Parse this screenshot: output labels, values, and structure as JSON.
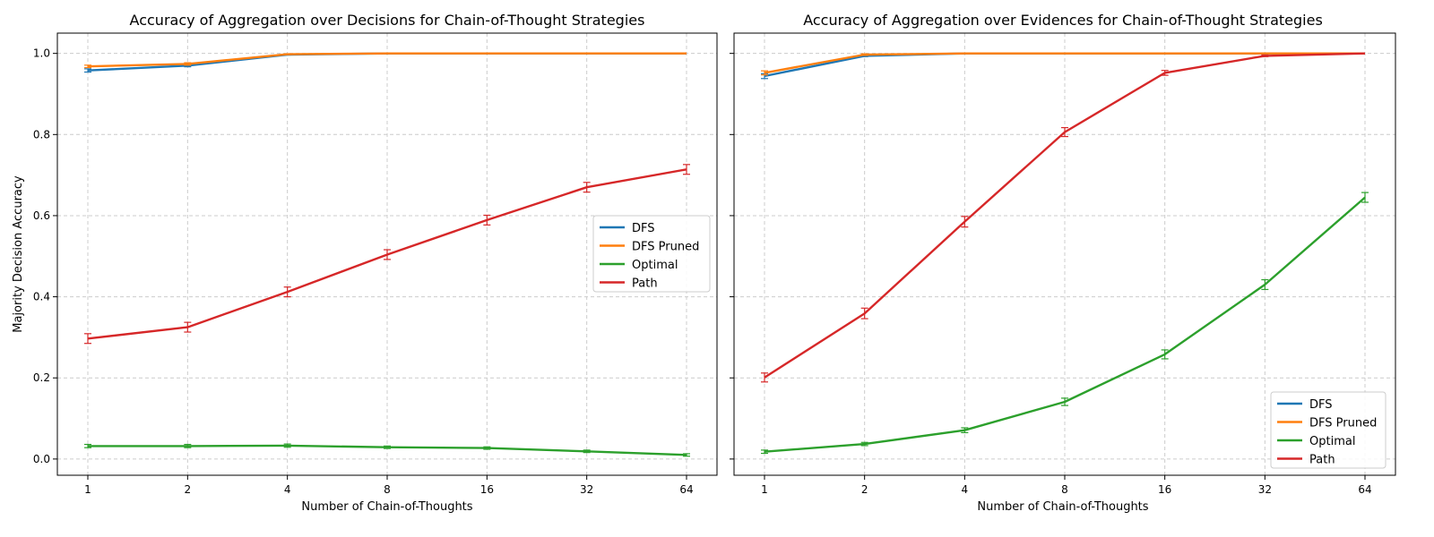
{
  "chart_data": [
    {
      "type": "line",
      "title": "Accuracy of Aggregation over Decisions for Chain-of-Thought Strategies",
      "xlabel": "Number of Chain-of-Thoughts",
      "ylabel": "Majority Decision Accuracy",
      "x": [
        1,
        2,
        4,
        8,
        16,
        32,
        64
      ],
      "x_tick_labels": [
        "1",
        "2",
        "4",
        "8",
        "16",
        "32",
        "64"
      ],
      "x_scale": "log2",
      "ylim": [
        -0.04,
        1.05
      ],
      "y_ticks": [
        0.0,
        0.2,
        0.4,
        0.6,
        0.8,
        1.0
      ],
      "y_tick_labels": [
        "0.0",
        "0.2",
        "0.4",
        "0.6",
        "0.8",
        "1.0"
      ],
      "grid": true,
      "legend_position": "center-right",
      "series": [
        {
          "name": "DFS",
          "color": "#1f77b4",
          "values": [
            0.958,
            0.97,
            0.997,
            1.0,
            1.0,
            1.0,
            1.0
          ],
          "errors": [
            0.004,
            0.003,
            0.001,
            0.0,
            0.0,
            0.0,
            0.0
          ]
        },
        {
          "name": "DFS Pruned",
          "color": "#ff7f0e",
          "values": [
            0.968,
            0.974,
            0.998,
            1.0,
            1.0,
            1.0,
            1.0
          ],
          "errors": [
            0.003,
            0.003,
            0.001,
            0.0,
            0.0,
            0.0,
            0.0
          ]
        },
        {
          "name": "Optimal",
          "color": "#2ca02c",
          "values": [
            0.032,
            0.032,
            0.033,
            0.029,
            0.027,
            0.019,
            0.01
          ],
          "errors": [
            0.004,
            0.004,
            0.004,
            0.003,
            0.003,
            0.003,
            0.003
          ]
        },
        {
          "name": "Path",
          "color": "#d62728",
          "values": [
            0.297,
            0.325,
            0.412,
            0.504,
            0.589,
            0.67,
            0.714
          ],
          "errors": [
            0.012,
            0.012,
            0.012,
            0.012,
            0.012,
            0.012,
            0.012
          ]
        }
      ]
    },
    {
      "type": "line",
      "title": "Accuracy of Aggregation over Evidences for Chain-of-Thought Strategies",
      "xlabel": "Number of Chain-of-Thoughts",
      "ylabel": "",
      "x": [
        1,
        2,
        4,
        8,
        16,
        32,
        64
      ],
      "x_tick_labels": [
        "1",
        "2",
        "4",
        "8",
        "16",
        "32",
        "64"
      ],
      "x_scale": "log2",
      "ylim": [
        -0.04,
        1.05
      ],
      "y_ticks": [
        0.0,
        0.2,
        0.4,
        0.6,
        0.8,
        1.0
      ],
      "y_tick_labels": [],
      "shared_y": true,
      "grid": true,
      "legend_position": "lower-right",
      "series": [
        {
          "name": "DFS",
          "color": "#1f77b4",
          "values": [
            0.944,
            0.994,
            1.0,
            1.0,
            1.0,
            1.0,
            1.0
          ],
          "errors": [
            0.006,
            0.002,
            0.0,
            0.0,
            0.0,
            0.0,
            0.0
          ]
        },
        {
          "name": "DFS Pruned",
          "color": "#ff7f0e",
          "values": [
            0.952,
            0.997,
            1.0,
            1.0,
            1.0,
            1.0,
            1.0
          ],
          "errors": [
            0.005,
            0.002,
            0.0,
            0.0,
            0.0,
            0.0,
            0.0
          ]
        },
        {
          "name": "Optimal",
          "color": "#2ca02c",
          "values": [
            0.018,
            0.037,
            0.071,
            0.141,
            0.258,
            0.43,
            0.645
          ],
          "errors": [
            0.004,
            0.004,
            0.006,
            0.009,
            0.011,
            0.012,
            0.012
          ]
        },
        {
          "name": "Path",
          "color": "#d62728",
          "values": [
            0.201,
            0.359,
            0.585,
            0.806,
            0.952,
            0.994,
            1.0
          ],
          "errors": [
            0.011,
            0.013,
            0.013,
            0.011,
            0.006,
            0.002,
            0.0
          ]
        }
      ]
    }
  ],
  "colors": {
    "axis": "#000000",
    "grid": "#cccccc",
    "legend_border": "#cccccc"
  }
}
